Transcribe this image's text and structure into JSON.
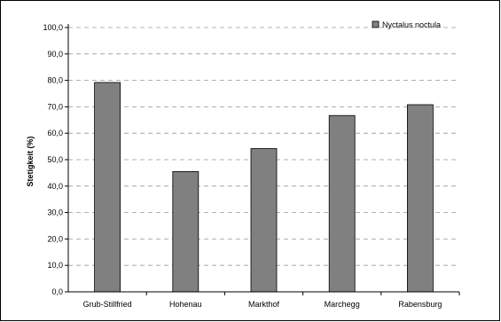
{
  "chart_data": {
    "type": "bar",
    "ylabel": "Stetigkeit (%)",
    "ylim": [
      0,
      100
    ],
    "yticks": [
      "0,0",
      "10,0",
      "20,0",
      "30,0",
      "40,0",
      "50,0",
      "60,0",
      "70,0",
      "80,0",
      "90,0",
      "100,0"
    ],
    "grid": true,
    "legend_position": "top-right",
    "categories": [
      "Grub-Stillfried",
      "Hohenau",
      "Markthof",
      "Marchegg",
      "Rabensburg"
    ],
    "series": [
      {
        "name": "Nyctalus noctula",
        "values": [
          79.2,
          45.5,
          54.2,
          66.7,
          70.8
        ],
        "color": "#808080"
      }
    ]
  }
}
